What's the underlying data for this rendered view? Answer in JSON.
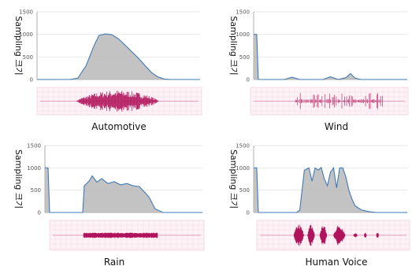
{
  "chart_data": [
    {
      "type": "area",
      "title": "Automotive",
      "ylabel": "Sampling 크기",
      "ylim": [
        0,
        1500
      ],
      "yticks": [
        "0",
        "500",
        "1000",
        "1500"
      ],
      "grid": true,
      "x": [
        0,
        0.05,
        0.1,
        0.15,
        0.2,
        0.25,
        0.3,
        0.35,
        0.38,
        0.42,
        0.46,
        0.5,
        0.54,
        0.58,
        0.62,
        0.66,
        0.7,
        0.74,
        0.78,
        0.82,
        0.86,
        0.9,
        0.95,
        1.0
      ],
      "values": [
        0,
        0,
        0,
        0,
        0,
        30,
        300,
        750,
        980,
        1010,
        990,
        900,
        760,
        620,
        480,
        320,
        160,
        60,
        10,
        0,
        0,
        0,
        0,
        0
      ],
      "waveform": {
        "envelope": 0.9,
        "color": "#b0125b",
        "density": "dense"
      }
    },
    {
      "type": "area",
      "title": "Wind",
      "ylabel": "Sampling 크기",
      "ylim": [
        0,
        1500
      ],
      "yticks": [
        "0",
        "500",
        "1000",
        "1500"
      ],
      "grid": true,
      "x": [
        0,
        0.005,
        0.02,
        0.03,
        0.2,
        0.25,
        0.3,
        0.45,
        0.5,
        0.55,
        0.6,
        0.63,
        0.66,
        0.7,
        1.0
      ],
      "values": [
        1000,
        1000,
        1000,
        0,
        0,
        50,
        0,
        0,
        60,
        0,
        40,
        130,
        30,
        0,
        0
      ],
      "waveform": {
        "envelope": 0.7,
        "color": "#c0306e",
        "density": "sparse"
      }
    },
    {
      "type": "area",
      "title": "Rain",
      "ylabel": "Sampling 크기",
      "ylim": [
        0,
        1500
      ],
      "yticks": [
        "0",
        "500",
        "1000",
        "1500"
      ],
      "grid": true,
      "x": [
        0,
        0.005,
        0.02,
        0.03,
        0.2,
        0.24,
        0.25,
        0.28,
        0.3,
        0.33,
        0.36,
        0.4,
        0.44,
        0.48,
        0.52,
        0.56,
        0.6,
        0.66,
        0.7,
        0.75,
        1.0
      ],
      "values": [
        1000,
        1000,
        1000,
        0,
        0,
        0,
        600,
        700,
        820,
        680,
        760,
        650,
        690,
        620,
        650,
        600,
        580,
        350,
        80,
        0,
        0
      ],
      "waveform": {
        "envelope": 0.2,
        "color": "#b0125b",
        "density": "flat"
      }
    },
    {
      "type": "area",
      "title": "Human Voice",
      "ylabel": "Sampling 크기",
      "ylim": [
        0,
        1500
      ],
      "yticks": [
        "0",
        "500",
        "1000",
        "1500"
      ],
      "grid": true,
      "x": [
        0,
        0.005,
        0.02,
        0.03,
        0.28,
        0.3,
        0.33,
        0.36,
        0.38,
        0.4,
        0.42,
        0.44,
        0.46,
        0.48,
        0.5,
        0.52,
        0.54,
        0.56,
        0.58,
        0.6,
        0.62,
        0.64,
        0.66,
        0.7,
        0.75,
        0.8,
        1.0
      ],
      "values": [
        1000,
        1000,
        1000,
        0,
        0,
        50,
        950,
        1000,
        700,
        1000,
        950,
        1010,
        750,
        600,
        900,
        1000,
        550,
        1000,
        1000,
        800,
        500,
        300,
        150,
        60,
        20,
        0,
        0
      ],
      "waveform": {
        "envelope": 0.85,
        "color": "#b0125b",
        "density": "bursts"
      }
    }
  ]
}
